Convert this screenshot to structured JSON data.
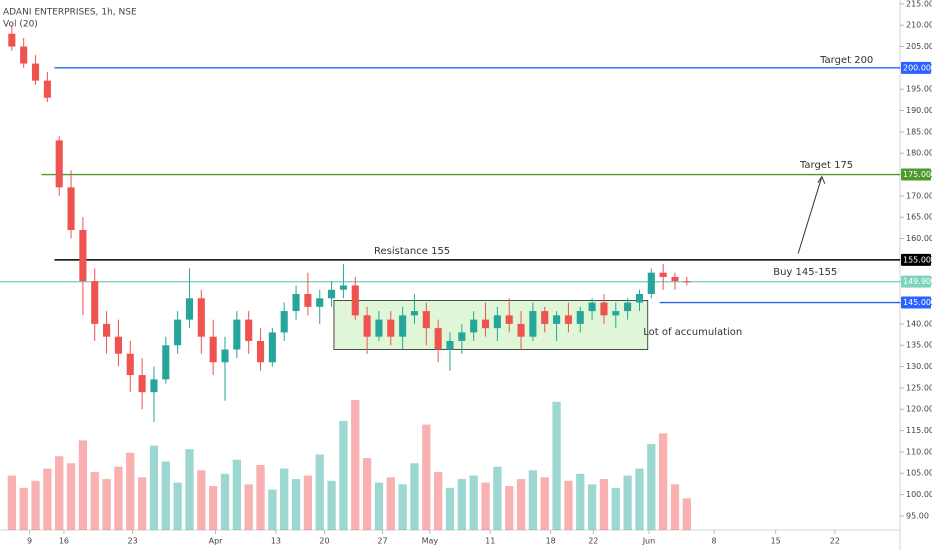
{
  "chart_data": {
    "type": "candlestick",
    "title": "ADANI ENTERPRISES, 1h, NSE",
    "subtitle": "Vol (20)",
    "up_color": "#26a69a",
    "down_color": "#ef5350",
    "xlim": [
      -1,
      75
    ],
    "ylim": [
      91.7,
      215.9
    ],
    "yticks": [
      {
        "value": 95,
        "label": "95.00"
      },
      {
        "value": 100,
        "label": "100.00"
      },
      {
        "value": 105,
        "label": "105.00"
      },
      {
        "value": 110,
        "label": "110.00"
      },
      {
        "value": 115,
        "label": "115.00"
      },
      {
        "value": 120,
        "label": "120.00"
      },
      {
        "value": 125,
        "label": "125.00"
      },
      {
        "value": 130,
        "label": "130.00"
      },
      {
        "value": 135,
        "label": "135.00"
      },
      {
        "value": 140,
        "label": "140.00"
      },
      {
        "value": 145,
        "label": "145.00"
      },
      {
        "value": 150,
        "label": "150.00"
      },
      {
        "value": 155,
        "label": "155.00"
      },
      {
        "value": 160,
        "label": "160.00"
      },
      {
        "value": 165,
        "label": "165.00"
      },
      {
        "value": 170,
        "label": "170.00"
      },
      {
        "value": 175,
        "label": "175.00"
      },
      {
        "value": 180,
        "label": "180.00"
      },
      {
        "value": 185,
        "label": "185.00"
      },
      {
        "value": 190,
        "label": "190.00"
      },
      {
        "value": 195,
        "label": "195.00"
      },
      {
        "value": 200,
        "label": "200.00"
      },
      {
        "value": 205,
        "label": "205.00"
      },
      {
        "value": 210,
        "label": "210.00"
      },
      {
        "value": 215,
        "label": "215.00"
      }
    ],
    "xticks": [
      {
        "value": 1.5,
        "label": "9"
      },
      {
        "value": 4.4,
        "label": "16"
      },
      {
        "value": 10.2,
        "label": "23"
      },
      {
        "value": 17.2,
        "label": "Apr"
      },
      {
        "value": 22.3,
        "label": "13"
      },
      {
        "value": 26.4,
        "label": "20"
      },
      {
        "value": 31.3,
        "label": "27"
      },
      {
        "value": 35.3,
        "label": "May"
      },
      {
        "value": 40.4,
        "label": "11"
      },
      {
        "value": 45.5,
        "label": "18"
      },
      {
        "value": 49.1,
        "label": "22"
      },
      {
        "value": 53.8,
        "label": "Jun"
      },
      {
        "value": 59.3,
        "label": "8"
      },
      {
        "value": 64.5,
        "label": "15"
      },
      {
        "value": 69.5,
        "label": "22"
      }
    ],
    "ohlc": {
      "open": [
        208,
        205,
        201,
        197,
        183,
        172,
        162,
        150,
        140,
        137,
        133,
        128,
        124,
        127,
        135,
        141,
        146,
        137,
        131,
        134,
        141,
        136,
        131,
        138,
        143,
        147,
        144,
        146,
        148,
        149,
        142,
        137,
        141,
        137,
        142,
        143,
        139,
        134,
        136,
        138,
        141,
        139,
        142,
        140,
        137,
        143,
        140,
        142,
        140,
        143,
        145,
        142,
        143,
        145,
        147,
        152,
        151,
        150
      ],
      "high": [
        210,
        207,
        203,
        199,
        184,
        176,
        165,
        153,
        143,
        141,
        136,
        132,
        130,
        137,
        143,
        153,
        148,
        141,
        137,
        143,
        143,
        139,
        139,
        145,
        149,
        152,
        148,
        150,
        154,
        151,
        144,
        143,
        143,
        144,
        147,
        145,
        141,
        138,
        140,
        143,
        145,
        144,
        146,
        143,
        145,
        144,
        143,
        145,
        144,
        146,
        147,
        145,
        146,
        148,
        153,
        154,
        152,
        151
      ],
      "low": [
        204,
        200,
        196,
        192,
        170,
        160,
        142,
        136,
        133,
        130,
        124,
        120,
        117,
        126,
        133,
        139,
        133,
        128,
        122,
        132,
        133,
        129,
        130,
        136,
        141,
        142,
        140,
        144,
        146,
        141,
        133,
        136,
        135,
        134,
        140,
        135,
        131,
        129,
        133,
        136,
        137,
        136,
        138,
        134,
        136,
        138,
        136,
        138,
        138,
        141,
        140,
        139,
        141,
        143,
        146,
        148,
        148,
        149
      ],
      "close": [
        205,
        201,
        197,
        193,
        172,
        162,
        150,
        140,
        137,
        133,
        128,
        124,
        127,
        135,
        141,
        146,
        137,
        131,
        134,
        141,
        136,
        131,
        138,
        143,
        147,
        144,
        146,
        148,
        149,
        142,
        137,
        141,
        137,
        142,
        143,
        139,
        134,
        136,
        138,
        141,
        139,
        142,
        140,
        137,
        143,
        140,
        142,
        140,
        143,
        145,
        142,
        143,
        145,
        147,
        152,
        151,
        150,
        149.9
      ]
    },
    "volume": [
      3.1,
      2.4,
      2.8,
      3.5,
      4.2,
      3.8,
      5.1,
      3.3,
      2.9,
      3.6,
      4.4,
      3.0,
      4.8,
      3.9,
      2.7,
      4.6,
      3.4,
      2.5,
      3.2,
      4.0,
      2.6,
      3.7,
      2.3,
      3.5,
      2.9,
      3.1,
      4.3,
      2.8,
      6.2,
      7.4,
      4.1,
      2.7,
      3.0,
      2.6,
      3.8,
      6.0,
      3.3,
      2.4,
      2.9,
      3.1,
      2.7,
      3.6,
      2.5,
      2.9,
      3.4,
      3.0,
      7.3,
      2.8,
      3.2,
      2.6,
      2.9,
      2.4,
      3.1,
      3.5,
      4.9,
      5.5,
      2.6,
      1.8
    ],
    "levels": [
      {
        "value": 200,
        "label": "200.00",
        "color": "#2962ff",
        "from": 3.6
      },
      {
        "value": 175,
        "label": "175.00",
        "color": "#4d9a2a",
        "from": 2.5
      },
      {
        "value": 155,
        "label": "155.00",
        "color": "#000000",
        "from": 3.6
      },
      {
        "value": 149.9,
        "label": "149.90",
        "color": "#7dd3c0",
        "from": -1
      },
      {
        "value": 145,
        "label": "145.00",
        "color": "#2962ff",
        "from": 54.7
      }
    ],
    "zone": {
      "x": [
        27.2,
        53.7
      ],
      "y": [
        134,
        145.5
      ],
      "color": "#dff7d6"
    },
    "arrow": {
      "x": [
        66.4,
        68.4
      ],
      "y": [
        156.5,
        174.5
      ]
    },
    "annotations": [
      {
        "text": "Target 200",
        "x": 70.5,
        "y": 201.8
      },
      {
        "text": "Target 175",
        "x": 68.8,
        "y": 177.2
      },
      {
        "text": "Resistance 155",
        "x": 33.8,
        "y": 157.1
      },
      {
        "text": "Buy 145-155",
        "x": 67,
        "y": 152.2
      },
      {
        "text": "Lot of accumulation",
        "x": 57.5,
        "y": 138.1
      }
    ]
  }
}
